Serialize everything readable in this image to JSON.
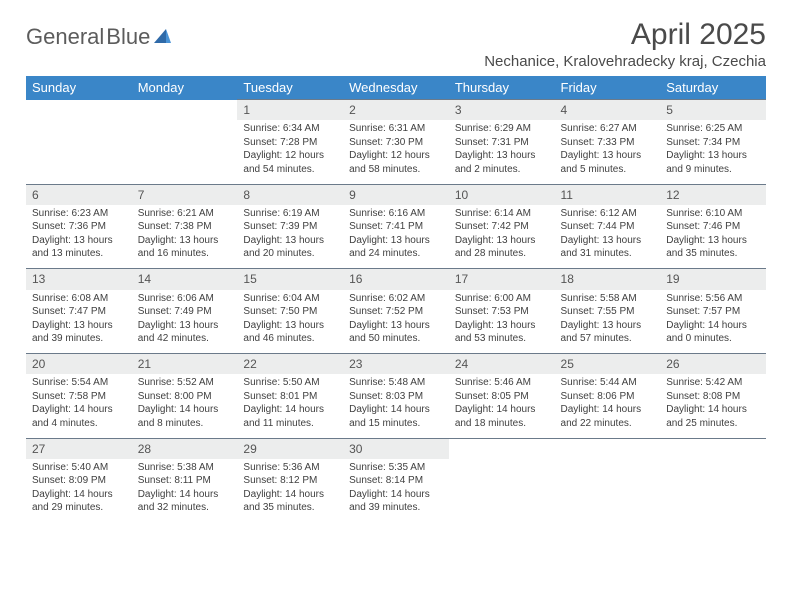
{
  "brand": {
    "name_part1": "General",
    "name_part2": "Blue"
  },
  "title": "April 2025",
  "location": "Nechanice, Kralovehradecky kraj, Czechia",
  "weekdays": [
    "Sunday",
    "Monday",
    "Tuesday",
    "Wednesday",
    "Thursday",
    "Friday",
    "Saturday"
  ],
  "colors": {
    "header_bg": "#3a86c8",
    "daynum_bg": "#eceded",
    "row_border": "#6b7a8a",
    "text": "#404040",
    "title_text": "#4a4a4a",
    "logo_gray": "#5c5c5c",
    "logo_blue": "#3a7cc2"
  },
  "typography": {
    "month_title_fontsize": 30,
    "location_fontsize": 15,
    "weekday_fontsize": 13,
    "daynum_fontsize": 12,
    "cell_fontsize": 10
  },
  "weeks": [
    {
      "nums": [
        "",
        "",
        "1",
        "2",
        "3",
        "4",
        "5"
      ],
      "info": [
        "",
        "",
        "Sunrise: 6:34 AM\nSunset: 7:28 PM\nDaylight: 12 hours and 54 minutes.",
        "Sunrise: 6:31 AM\nSunset: 7:30 PM\nDaylight: 12 hours and 58 minutes.",
        "Sunrise: 6:29 AM\nSunset: 7:31 PM\nDaylight: 13 hours and 2 minutes.",
        "Sunrise: 6:27 AM\nSunset: 7:33 PM\nDaylight: 13 hours and 5 minutes.",
        "Sunrise: 6:25 AM\nSunset: 7:34 PM\nDaylight: 13 hours and 9 minutes."
      ]
    },
    {
      "nums": [
        "6",
        "7",
        "8",
        "9",
        "10",
        "11",
        "12"
      ],
      "info": [
        "Sunrise: 6:23 AM\nSunset: 7:36 PM\nDaylight: 13 hours and 13 minutes.",
        "Sunrise: 6:21 AM\nSunset: 7:38 PM\nDaylight: 13 hours and 16 minutes.",
        "Sunrise: 6:19 AM\nSunset: 7:39 PM\nDaylight: 13 hours and 20 minutes.",
        "Sunrise: 6:16 AM\nSunset: 7:41 PM\nDaylight: 13 hours and 24 minutes.",
        "Sunrise: 6:14 AM\nSunset: 7:42 PM\nDaylight: 13 hours and 28 minutes.",
        "Sunrise: 6:12 AM\nSunset: 7:44 PM\nDaylight: 13 hours and 31 minutes.",
        "Sunrise: 6:10 AM\nSunset: 7:46 PM\nDaylight: 13 hours and 35 minutes."
      ]
    },
    {
      "nums": [
        "13",
        "14",
        "15",
        "16",
        "17",
        "18",
        "19"
      ],
      "info": [
        "Sunrise: 6:08 AM\nSunset: 7:47 PM\nDaylight: 13 hours and 39 minutes.",
        "Sunrise: 6:06 AM\nSunset: 7:49 PM\nDaylight: 13 hours and 42 minutes.",
        "Sunrise: 6:04 AM\nSunset: 7:50 PM\nDaylight: 13 hours and 46 minutes.",
        "Sunrise: 6:02 AM\nSunset: 7:52 PM\nDaylight: 13 hours and 50 minutes.",
        "Sunrise: 6:00 AM\nSunset: 7:53 PM\nDaylight: 13 hours and 53 minutes.",
        "Sunrise: 5:58 AM\nSunset: 7:55 PM\nDaylight: 13 hours and 57 minutes.",
        "Sunrise: 5:56 AM\nSunset: 7:57 PM\nDaylight: 14 hours and 0 minutes."
      ]
    },
    {
      "nums": [
        "20",
        "21",
        "22",
        "23",
        "24",
        "25",
        "26"
      ],
      "info": [
        "Sunrise: 5:54 AM\nSunset: 7:58 PM\nDaylight: 14 hours and 4 minutes.",
        "Sunrise: 5:52 AM\nSunset: 8:00 PM\nDaylight: 14 hours and 8 minutes.",
        "Sunrise: 5:50 AM\nSunset: 8:01 PM\nDaylight: 14 hours and 11 minutes.",
        "Sunrise: 5:48 AM\nSunset: 8:03 PM\nDaylight: 14 hours and 15 minutes.",
        "Sunrise: 5:46 AM\nSunset: 8:05 PM\nDaylight: 14 hours and 18 minutes.",
        "Sunrise: 5:44 AM\nSunset: 8:06 PM\nDaylight: 14 hours and 22 minutes.",
        "Sunrise: 5:42 AM\nSunset: 8:08 PM\nDaylight: 14 hours and 25 minutes."
      ]
    },
    {
      "nums": [
        "27",
        "28",
        "29",
        "30",
        "",
        "",
        ""
      ],
      "info": [
        "Sunrise: 5:40 AM\nSunset: 8:09 PM\nDaylight: 14 hours and 29 minutes.",
        "Sunrise: 5:38 AM\nSunset: 8:11 PM\nDaylight: 14 hours and 32 minutes.",
        "Sunrise: 5:36 AM\nSunset: 8:12 PM\nDaylight: 14 hours and 35 minutes.",
        "Sunrise: 5:35 AM\nSunset: 8:14 PM\nDaylight: 14 hours and 39 minutes.",
        "",
        "",
        ""
      ]
    }
  ]
}
